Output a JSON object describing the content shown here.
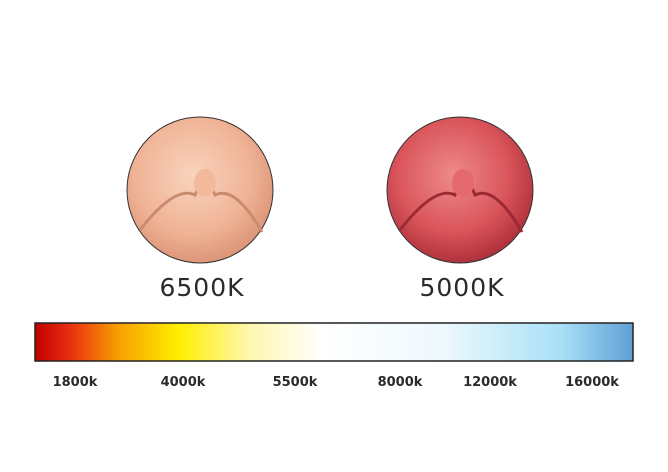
{
  "samples": [
    {
      "label": "6500K"
    },
    {
      "label": "5000K"
    }
  ],
  "scale": {
    "ticks": [
      "1800k",
      "4000k",
      "5500k",
      "8000k",
      "12000k",
      "16000k"
    ]
  }
}
